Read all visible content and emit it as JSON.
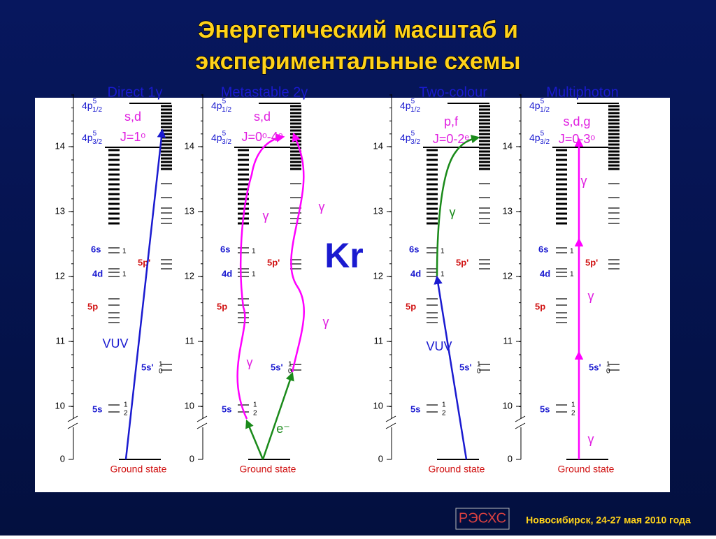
{
  "title": [
    "Энергетический масштаб и",
    "экспериментальные схемы"
  ],
  "element": "Kr",
  "panels": [
    {
      "title": "Direct 1γ",
      "axis_ticks": [
        14,
        13,
        12,
        11,
        10,
        0
      ],
      "levels": {
        "p12": {
          "base": "4p",
          "sup": "5",
          "sub": "1/2"
        },
        "p32": {
          "base": "4p",
          "sup": "5",
          "sub": "3/2"
        },
        "s6": "6s",
        "d4": "4d",
        "p5": "5p",
        "s5": "5s",
        "p5p": "5p'",
        "s5p": "5s'",
        "j": [
          "1",
          "1",
          "1",
          "2",
          "1",
          "0"
        ]
      },
      "ground": "Ground state",
      "labels": [
        {
          "text": "s,d",
          "color": "#e020e0"
        },
        {
          "text": "J=1ᵒ",
          "color": "#e020e0"
        },
        {
          "text": "VUV",
          "color": "#1a1ad0"
        }
      ]
    },
    {
      "title": "Metastable 2γ",
      "axis_ticks": [
        14,
        13,
        12,
        11,
        10,
        0
      ],
      "levels": {
        "p12": {
          "base": "4p",
          "sup": "5",
          "sub": "1/2"
        },
        "p32": {
          "base": "4p",
          "sup": "5",
          "sub": "3/2"
        },
        "s6": "6s",
        "d4": "4d",
        "p5": "5p",
        "s5": "5s",
        "p5p": "5p'",
        "s5p": "5s'",
        "j": [
          "1",
          "1",
          "1",
          "2",
          "1",
          "0"
        ]
      },
      "ground": "Ground state",
      "labels": [
        {
          "text": "s,d",
          "color": "#e020e0"
        },
        {
          "text": "J=0ᵒ-4ᵒ",
          "color": "#e020e0"
        },
        {
          "text": "γ",
          "color": "#e020e0"
        },
        {
          "text": "γ",
          "color": "#e020e0"
        },
        {
          "text": "γ",
          "color": "#e020e0"
        },
        {
          "text": "γ",
          "color": "#e020e0"
        },
        {
          "text": "e⁻",
          "color": "#1a8a1a"
        }
      ]
    },
    {
      "title": "Two-colour",
      "axis_ticks": [
        14,
        13,
        12,
        11,
        10,
        0
      ],
      "levels": {
        "p12": {
          "base": "4p",
          "sup": "5",
          "sub": "1/2"
        },
        "p32": {
          "base": "4p",
          "sup": "5",
          "sub": "3/2"
        },
        "s6": "6s",
        "d4": "4d",
        "p5": "5p",
        "s5": "5s",
        "p5p": "5p'",
        "s5p": "5s'",
        "j": [
          "1",
          "1",
          "1",
          "2",
          "1",
          "0"
        ]
      },
      "ground": "Ground state",
      "labels": [
        {
          "text": "p,f",
          "color": "#e020e0"
        },
        {
          "text": "J=0-2ᵉ",
          "color": "#e020e0"
        },
        {
          "text": "γ",
          "color": "#1a8a1a"
        },
        {
          "text": "VUV",
          "color": "#1a1ad0"
        }
      ]
    },
    {
      "title": "Multiphoton",
      "axis_ticks": [
        14,
        13,
        12,
        11,
        10,
        0
      ],
      "levels": {
        "p12": {
          "base": "4p",
          "sup": "5",
          "sub": "1/2"
        },
        "p32": {
          "base": "4p",
          "sup": "5",
          "sub": "3/2"
        },
        "s6": "6s",
        "d4": "4d",
        "p5": "5p",
        "s5": "5s",
        "p5p": "5p'",
        "s5p": "5s'",
        "j": [
          "1",
          "1",
          "1",
          "2",
          "1",
          "0"
        ]
      },
      "ground": "Ground state",
      "labels": [
        {
          "text": "s,d,g",
          "color": "#e020e0"
        },
        {
          "text": "J=0-3ᵒ",
          "color": "#e020e0"
        },
        {
          "text": "γ",
          "color": "#e020e0"
        },
        {
          "text": "γ",
          "color": "#e020e0"
        },
        {
          "text": "γ",
          "color": "#e020e0"
        }
      ]
    }
  ],
  "logo": "РЭСХС",
  "footer": "Новосибирск, 24-27 мая 2010 года"
}
